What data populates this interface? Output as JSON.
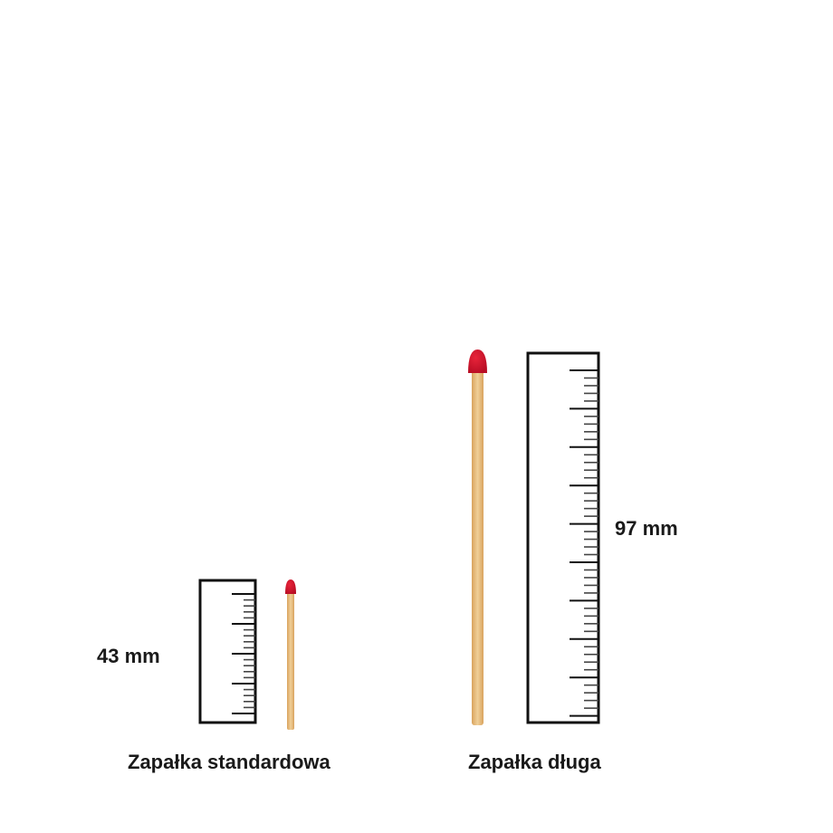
{
  "items": [
    {
      "name": "Zapałka standardowa",
      "length_label": "43 mm",
      "length_mm": 43
    },
    {
      "name": "Zapałka długa",
      "length_label": "97 mm",
      "length_mm": 97
    }
  ],
  "colors": {
    "match_head": "#c8102e",
    "match_stick": "#e3b77a",
    "ruler": "#111111"
  }
}
